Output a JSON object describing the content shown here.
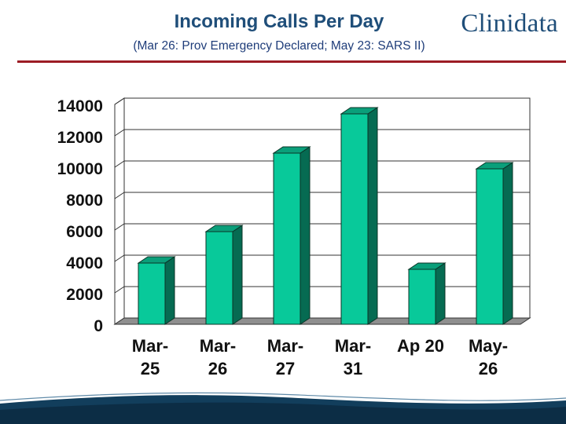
{
  "slide": {
    "title": "Incoming Calls Per Day",
    "subtitle": "(Mar 26: Prov Emergency Declared; May 23: SARS II)",
    "logo_text": "Clinidata"
  },
  "colors": {
    "title": "#1f4e79",
    "rule": "#9c1c24",
    "bar_front": "#08c99a",
    "bar_top": "#0a9f7a",
    "bar_side": "#066b52",
    "bar_stroke": "#0b3326",
    "floor": "#8f8f8f",
    "footer": "#123e5c"
  },
  "chart_data": {
    "type": "bar",
    "categories": [
      [
        "Mar-",
        "25"
      ],
      [
        "Mar-",
        "26"
      ],
      [
        "Mar-",
        "27"
      ],
      [
        "Mar-",
        "31"
      ],
      [
        "Ap 20"
      ],
      [
        "May-",
        "26"
      ]
    ],
    "values": [
      3900,
      5900,
      10900,
      13400,
      3500,
      9900
    ],
    "title": "Incoming Calls Per Day",
    "ylim": [
      0,
      14000
    ],
    "yticks": [
      "0",
      "2000",
      "4000",
      "6000",
      "8000",
      "10000",
      "12000",
      "14000"
    ],
    "grid": true,
    "style": "3d"
  }
}
